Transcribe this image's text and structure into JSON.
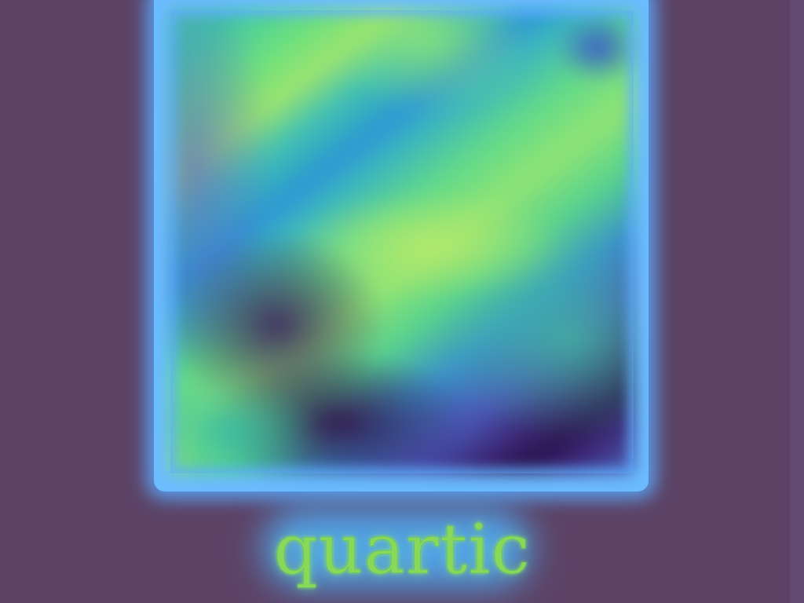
{
  "figure": {
    "label": "quartic",
    "colors": {
      "background": "#5c4366",
      "frame_glow": "#6cbcff",
      "heatmap_low": "#2c1550",
      "heatmap_mid": "#3ab4c0",
      "heatmap_high": "#9be46f",
      "label_text": "#8ad85a"
    }
  }
}
